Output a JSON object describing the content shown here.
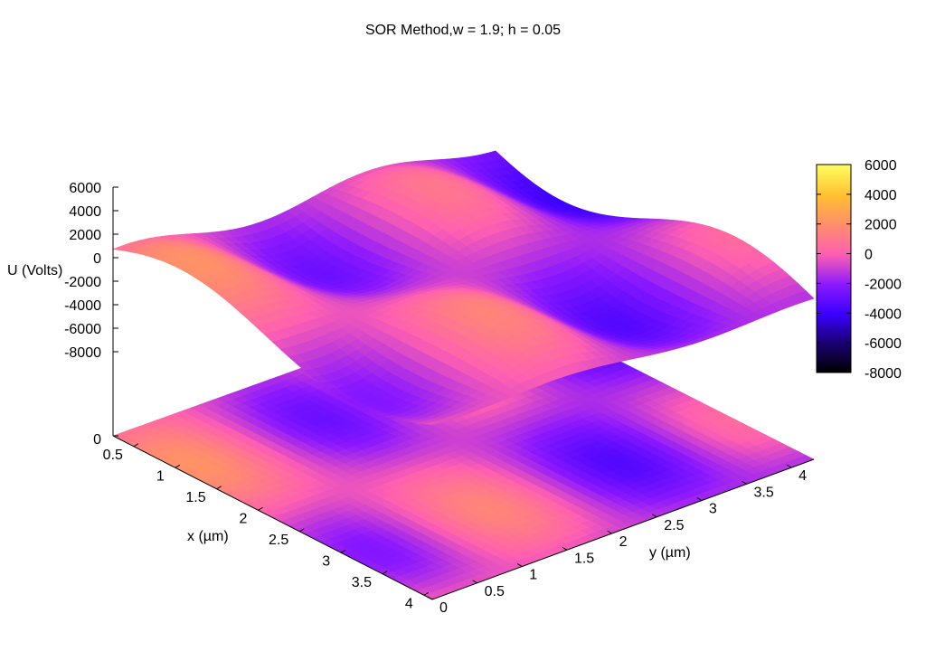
{
  "chart_data": {
    "type": "surface3d",
    "title": "SOR Method,w = 1.9; h = 0.05",
    "zlabel": "U (Volts)",
    "xlabel": "x (µm)",
    "ylabel": "y (µm)",
    "z_ticks": [
      "6000",
      "4000",
      "2000",
      "0",
      "-2000",
      "-4000",
      "-6000",
      "-8000"
    ],
    "z_base_tick": "0",
    "x_ticks": [
      "0.5",
      "1",
      "1.5",
      "2",
      "2.5",
      "3",
      "3.5",
      "4"
    ],
    "y_ticks": [
      "0",
      "0.5",
      "1",
      "1.5",
      "2",
      "2.5",
      "3",
      "3.5",
      "4"
    ],
    "xlim": [
      0.25,
      4.1
    ],
    "ylim": [
      0,
      4.25
    ],
    "zlim": [
      -8000,
      6000
    ],
    "colorbar": {
      "ticks": [
        "6000",
        "4000",
        "2000",
        "0",
        "-2000",
        "-4000",
        "-6000",
        "-8000"
      ],
      "range": [
        -8000,
        6000
      ],
      "palette": [
        "#000000",
        "#3a00c8",
        "#7a10ff",
        "#d040e8",
        "#ff60b0",
        "#ff8a80",
        "#ffb040",
        "#ffe040",
        "#ffff40"
      ]
    },
    "surface": {
      "grid_x_points": 40,
      "grid_y_points": 44,
      "note_values": "sinusoidal potential, max about 3000 near x=2.5 y=0.5, min about -6500 near x=1 y=3.2"
    }
  }
}
